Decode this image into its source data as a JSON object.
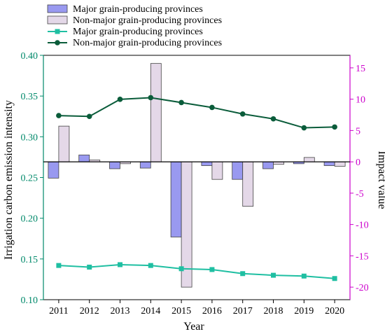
{
  "chart_data": {
    "type": "bar",
    "xlabel": "Year",
    "ylabel_left": "Irrigation carbon emission intensity",
    "ylabel_right": "Impact value",
    "categories": [
      "2011",
      "2012",
      "2013",
      "2014",
      "2015",
      "2016",
      "2017",
      "2018",
      "2019",
      "2020"
    ],
    "left_axis": {
      "ylim": [
        0.1,
        0.4
      ],
      "ticks": [
        0.1,
        0.15,
        0.2,
        0.25,
        0.3,
        0.35,
        0.4
      ],
      "tick_labels": [
        "0.10",
        "0.15",
        "0.20",
        "0.25",
        "0.30",
        "0.35",
        "0.40"
      ],
      "color": "#00896a"
    },
    "right_axis": {
      "ylim": [
        -22,
        17
      ],
      "ticks": [
        -20,
        -15,
        -10,
        -5,
        0,
        5,
        10,
        15
      ],
      "tick_labels": [
        "-20",
        "-15",
        "-10",
        "-5",
        "0",
        "5",
        "10",
        "15"
      ],
      "color": "#cc00cc"
    },
    "series": [
      {
        "name": "Major grain-producing provinces",
        "kind": "bar",
        "axis": "right",
        "fill": "#9999f0",
        "values": [
          -2.6,
          1.1,
          -1.1,
          -1.0,
          -12.0,
          -0.6,
          -2.8,
          -1.1,
          -0.3,
          -0.6
        ]
      },
      {
        "name": "Non-major grain-producing provinces",
        "kind": "bar",
        "axis": "right",
        "fill": "#e4d8e8",
        "values": [
          5.7,
          0.3,
          -0.3,
          15.7,
          -20.0,
          -2.8,
          -7.1,
          -0.4,
          0.7,
          -0.7
        ]
      },
      {
        "name": "Major grain-producing provinces",
        "kind": "line",
        "axis": "left",
        "color": "#1fbfa2",
        "marker": "square",
        "values": [
          0.142,
          0.14,
          0.143,
          0.142,
          0.138,
          0.137,
          0.132,
          0.13,
          0.129,
          0.126
        ]
      },
      {
        "name": "Non-major grain-producing provinces",
        "kind": "line",
        "axis": "left",
        "color": "#0a5c3a",
        "marker": "circle",
        "values": [
          0.326,
          0.325,
          0.346,
          0.348,
          0.342,
          0.336,
          0.328,
          0.322,
          0.311,
          0.312
        ]
      }
    ],
    "legend_placement": "top-left"
  }
}
